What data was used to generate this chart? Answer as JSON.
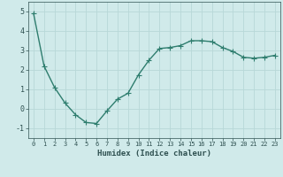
{
  "x": [
    0,
    1,
    2,
    3,
    4,
    5,
    6,
    7,
    8,
    9,
    10,
    11,
    12,
    13,
    14,
    15,
    16,
    17,
    18,
    19,
    20,
    21,
    22,
    23
  ],
  "y": [
    4.9,
    2.2,
    1.1,
    0.3,
    -0.3,
    -0.7,
    -0.75,
    -0.1,
    0.5,
    0.8,
    1.75,
    2.5,
    3.1,
    3.15,
    3.25,
    3.5,
    3.5,
    3.45,
    3.15,
    2.95,
    2.65,
    2.6,
    2.65,
    2.75
  ],
  "line_color": "#2e7d6e",
  "marker_color": "#2e7d6e",
  "bg_color": "#d0eaea",
  "grid_color": "#b8d8d8",
  "xlabel": "Humidex (Indice chaleur)",
  "ylim": [
    -1.5,
    5.5
  ],
  "xlim": [
    -0.5,
    23.5
  ],
  "yticks": [
    -1,
    0,
    1,
    2,
    3,
    4,
    5
  ],
  "xticks": [
    0,
    1,
    2,
    3,
    4,
    5,
    6,
    7,
    8,
    9,
    10,
    11,
    12,
    13,
    14,
    15,
    16,
    17,
    18,
    19,
    20,
    21,
    22,
    23
  ],
  "font_color": "#2e5050",
  "xlabel_fontsize": 6.5,
  "xtick_fontsize": 5.0,
  "ytick_fontsize": 6.0,
  "linewidth": 1.0,
  "markersize": 2.2
}
